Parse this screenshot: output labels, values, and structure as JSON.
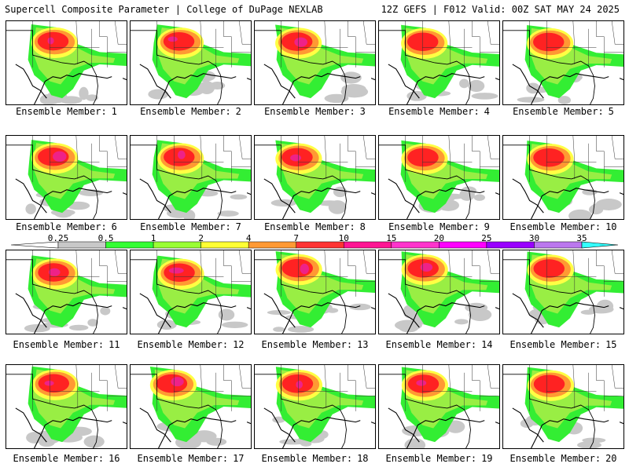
{
  "header": {
    "title": "Supercell Composite Parameter | College of DuPage NEXLAB",
    "run_info": "12Z GEFS | F012 Valid: 00Z SAT MAY 24 2025"
  },
  "panel_label_prefix": "Ensemble Member:",
  "members": [
    "1",
    "2",
    "3",
    "4",
    "5",
    "6",
    "7",
    "8",
    "9",
    "10",
    "11",
    "12",
    "13",
    "14",
    "15",
    "16",
    "17",
    "18",
    "19",
    "20"
  ],
  "colorbar": {
    "ticks": [
      "0.25",
      "0.5",
      "1",
      "2",
      "4",
      "7",
      "10",
      "15",
      "20",
      "25",
      "30",
      "35"
    ],
    "colors": [
      "#c8c8c8",
      "#33ff33",
      "#99ff33",
      "#ffff33",
      "#ff9933",
      "#ff3333",
      "#ff1493",
      "#ff33cc",
      "#ff00ff",
      "#9900ff",
      "#bb77ee",
      "#33ffff"
    ]
  },
  "field_colors": {
    "gray": "#c8c8c8",
    "green": "#33ee33",
    "lightgreen": "#99ee44",
    "yellow": "#ffff44",
    "orange": "#ff9933",
    "red": "#ff2222",
    "magenta": "#ee2288"
  }
}
